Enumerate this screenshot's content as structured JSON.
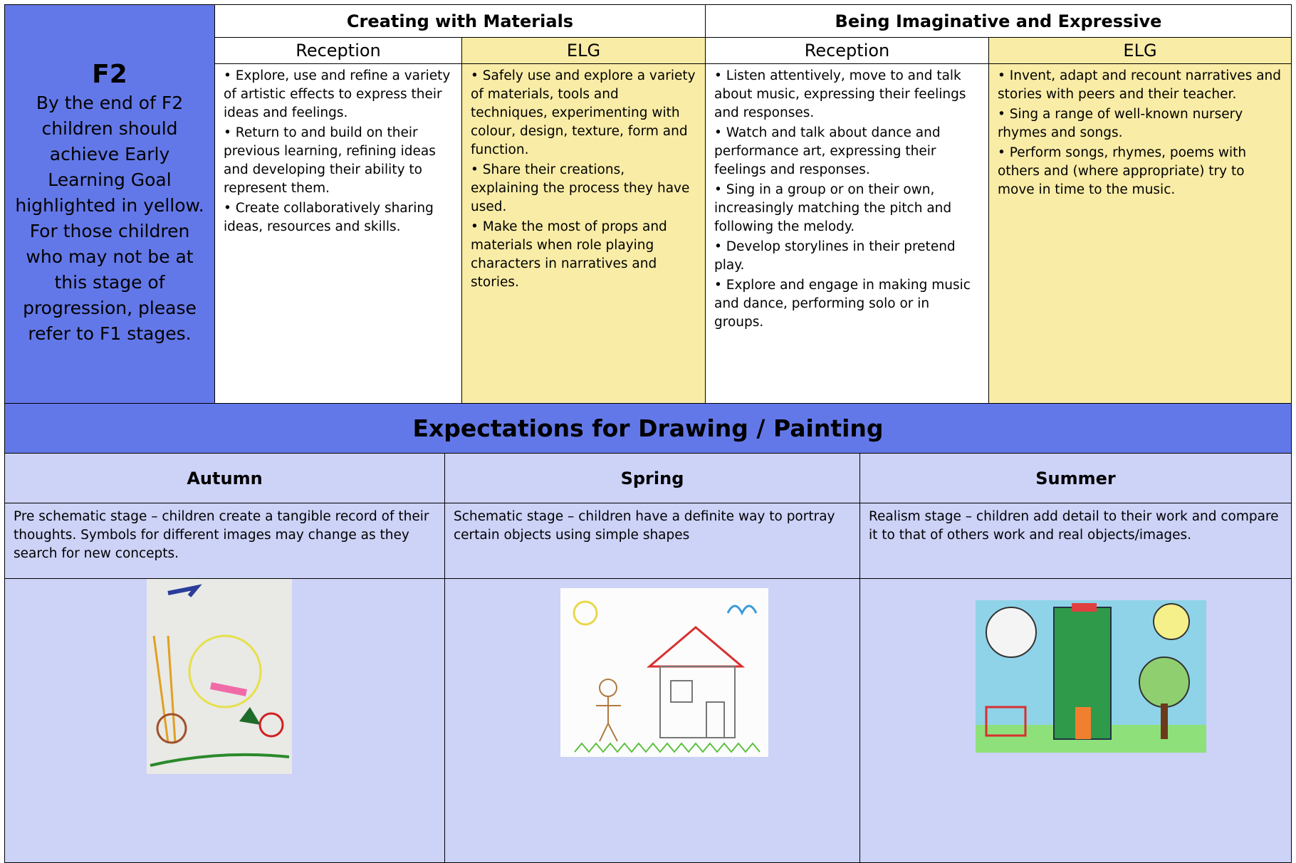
{
  "side": {
    "title": "F2",
    "paragraphs": [
      "By the end of F2 children should achieve Early Learning Goal highlighted in yellow.",
      "For those children who may not be at this stage of progression, please refer to F1 stages."
    ]
  },
  "areas": [
    {
      "title": "Creating with Materials",
      "reception_label": "Reception",
      "elg_label": "ELG",
      "reception": [
        "• Explore, use and refine a variety of artistic effects to express their ideas and feelings.",
        "• Return to and build on their previous learning, refining ideas and developing their ability to represent them.",
        "• Create collaboratively sharing ideas, resources and skills."
      ],
      "elg": [
        "• Safely use and explore a variety of materials, tools and techniques, experimenting with colour, design, texture, form and function.",
        "• Share their creations, explaining the process they have used.",
        "• Make the most of props and materials when role playing characters in narratives and stories."
      ]
    },
    {
      "title": "Being Imaginative and Expressive",
      "reception_label": "Reception",
      "elg_label": "ELG",
      "reception": [
        "• Listen attentively, move to and talk about music, expressing their feelings and responses.",
        "• Watch and talk about dance and performance art, expressing their feelings and responses.",
        "• Sing in a group or on their own, increasingly matching the pitch and following the melody.",
        "• Develop storylines in their pretend play.",
        "• Explore and engage in making music and dance, performing solo or in groups."
      ],
      "elg": [
        "• Invent, adapt and recount narratives and stories with peers and their teacher.",
        "• Sing a range of well-known nursery rhymes and songs.",
        "• Perform songs, rhymes, poems with others and (where appropriate) try to move in time to the music."
      ]
    }
  ],
  "expectations": {
    "title": "Expectations for Drawing / Painting",
    "seasons": [
      {
        "name": "Autumn",
        "text": "Pre schematic stage – children create a tangible record of their thoughts. Symbols for different images may change as they search for new concepts."
      },
      {
        "name": "Spring",
        "text": "Schematic stage – children have a definite way to portray certain objects using simple shapes"
      },
      {
        "name": "Summer",
        "text": "Realism stage – children add detail to their work and compare it to that of others work and real objects/images."
      }
    ]
  }
}
